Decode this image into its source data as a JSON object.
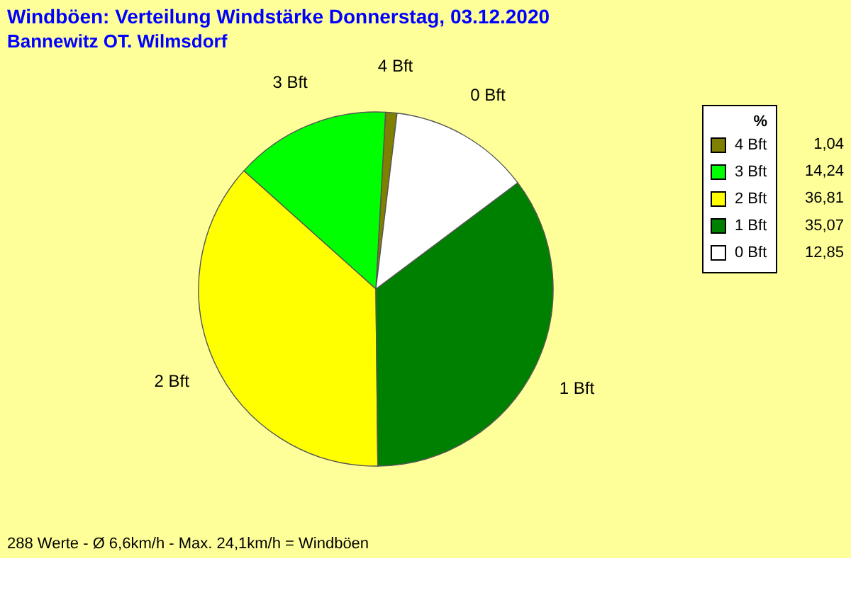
{
  "chart_data": {
    "type": "pie",
    "title": "Windböen: Verteilung Windstärke  Donnerstag, 03.12.2020",
    "subtitle": "Bannewitz OT. Wilmsdorf",
    "categories": [
      "4 Bft",
      "3 Bft",
      "2 Bft",
      "1 Bft",
      "0 Bft"
    ],
    "values": [
      1.04,
      14.24,
      36.81,
      35.07,
      12.85
    ],
    "value_labels": [
      "1,04",
      "14,24",
      "36,81",
      "35,07",
      "12,85"
    ],
    "colors": [
      "#808000",
      "#00ff00",
      "#ffff00",
      "#008000",
      "#ffffff"
    ],
    "legend_title": "%",
    "legend": "top right",
    "annotations": [
      "288 Werte   -   Ø 6,6km/h  -  Max. 24,1km/h = Windböen"
    ]
  }
}
